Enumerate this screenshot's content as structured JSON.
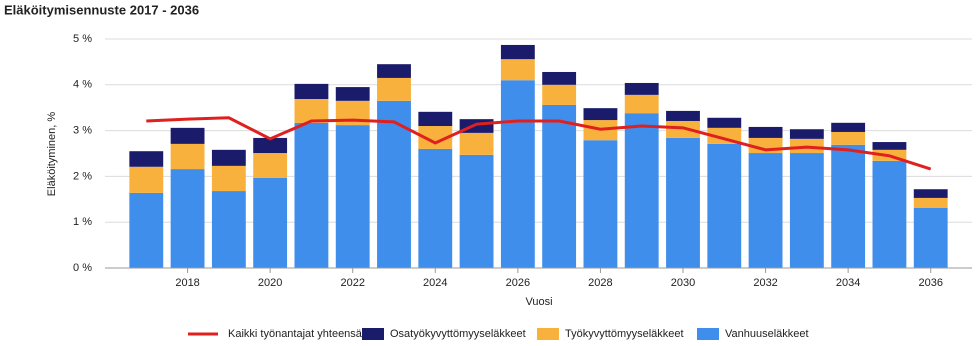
{
  "chart_data": {
    "type": "bar",
    "stacked": true,
    "title": "Eläköitymisennuste 2017 - 2036",
    "y_label": "Eläköityminen, %",
    "x_label": "Vuosi",
    "x": [
      2017,
      2018,
      2019,
      2020,
      2021,
      2022,
      2023,
      2024,
      2025,
      2026,
      2027,
      2028,
      2029,
      2030,
      2031,
      2032,
      2033,
      2034,
      2035,
      2036
    ],
    "xlim": [
      2016,
      2037
    ],
    "xticks": [
      2018,
      2020,
      2022,
      2024,
      2026,
      2028,
      2030,
      2032,
      2034,
      2036
    ],
    "ylim": [
      0,
      5
    ],
    "yticks": [
      {
        "value": 0,
        "label": "0 %"
      },
      {
        "value": 1,
        "label": "1 %"
      },
      {
        "value": 2,
        "label": "2 %"
      },
      {
        "value": 3,
        "label": "3 %"
      },
      {
        "value": 4,
        "label": "4 %"
      },
      {
        "value": 5,
        "label": "5 %"
      }
    ],
    "grid": true,
    "legend": "bottom",
    "series": [
      {
        "name": "Kaikki työnantajat yhteensä",
        "type": "line",
        "color": "#e0201f",
        "values": [
          3.21,
          3.25,
          3.28,
          2.82,
          3.21,
          3.23,
          3.19,
          2.73,
          3.14,
          3.21,
          3.21,
          3.03,
          3.1,
          3.06,
          2.82,
          2.58,
          2.64,
          2.58,
          2.45,
          2.16
        ]
      },
      {
        "name": "Osatyökyvyttömyyseläkkeet",
        "type": "bar",
        "color": "#1b1b6b",
        "values": [
          0.34,
          0.35,
          0.35,
          0.33,
          0.33,
          0.3,
          0.3,
          0.31,
          0.3,
          0.31,
          0.28,
          0.26,
          0.26,
          0.22,
          0.22,
          0.24,
          0.21,
          0.2,
          0.17,
          0.19
        ]
      },
      {
        "name": "Työkyvyttömyyseläkkeet",
        "type": "bar",
        "color": "#f8b13c",
        "values": [
          0.57,
          0.55,
          0.55,
          0.54,
          0.52,
          0.53,
          0.5,
          0.5,
          0.48,
          0.46,
          0.44,
          0.44,
          0.4,
          0.37,
          0.35,
          0.33,
          0.31,
          0.28,
          0.24,
          0.22
        ]
      },
      {
        "name": "Vanhuuseläkkeet",
        "type": "bar",
        "color": "#3f8eec",
        "values": [
          1.64,
          2.16,
          1.68,
          1.97,
          3.17,
          3.12,
          3.65,
          2.6,
          2.47,
          4.1,
          3.56,
          2.79,
          3.38,
          2.84,
          2.71,
          2.51,
          2.51,
          2.69,
          2.34,
          1.31
        ]
      }
    ]
  }
}
